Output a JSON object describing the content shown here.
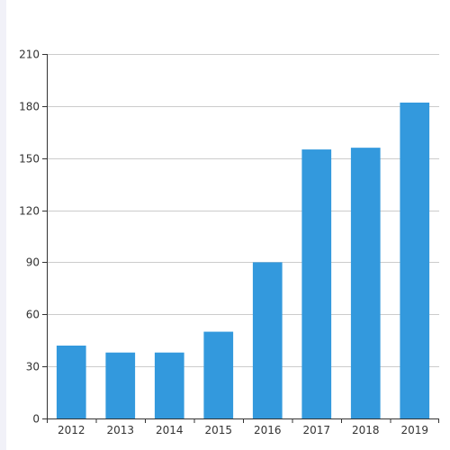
{
  "colors": {
    "bar": "#3399dd",
    "grid": "#cccccc",
    "axis": "#333333",
    "background": "#ffffff",
    "left_strip": "#f1f1f8"
  },
  "chart_data": {
    "type": "bar",
    "categories": [
      "2012",
      "2013",
      "2014",
      "2015",
      "2016",
      "2017",
      "2018",
      "2019"
    ],
    "values": [
      42,
      38,
      38,
      50,
      90,
      155,
      156,
      182
    ],
    "title": "",
    "xlabel": "",
    "ylabel": "",
    "ylim": [
      0,
      210
    ],
    "yticks": [
      0,
      30,
      60,
      90,
      120,
      150,
      180,
      210
    ],
    "grid": true,
    "legend": "none"
  }
}
